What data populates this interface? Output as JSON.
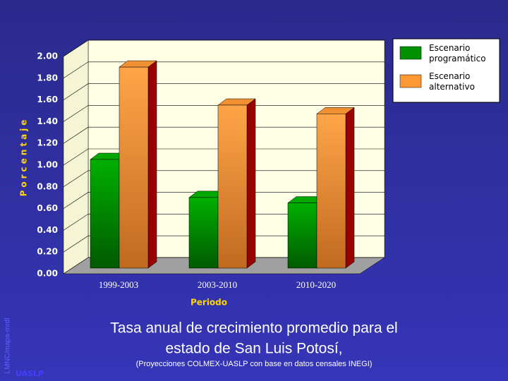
{
  "chart_data": {
    "type": "bar3d",
    "title_lines": [
      "Tasa anual de crecimiento promedio para el",
      "estado de  San Luis Potosí,"
    ],
    "subtitle": "(Proyecciones COLMEX-UASLP con base en datos censales INEGI)",
    "x_label": "Periodo",
    "y_label": "Porcentaje",
    "categories": [
      "1999-2003",
      "2003-2010",
      "2010-2020"
    ],
    "series": [
      {
        "name": "Escenario programático",
        "color": "#009000",
        "values": [
          1.0,
          0.65,
          0.6
        ]
      },
      {
        "name": "Escenario alternativo",
        "color": "#ff9933",
        "values": [
          1.85,
          1.5,
          1.42
        ]
      }
    ],
    "ylim": [
      0,
      2
    ],
    "yticks": [
      {
        "value": 0,
        "label": "0.00"
      },
      {
        "value": 0.2,
        "label": "0.20"
      },
      {
        "value": 0.4,
        "label": "0.40"
      },
      {
        "value": 0.6,
        "label": "0.60"
      },
      {
        "value": 0.8,
        "label": "0.80"
      },
      {
        "value": 1,
        "label": "1.00"
      },
      {
        "value": 1.2,
        "label": "1.20"
      },
      {
        "value": 1.4,
        "label": "1.40"
      },
      {
        "value": 1.6,
        "label": "1.60"
      },
      {
        "value": 1.8,
        "label": "1.80"
      },
      {
        "value": 2,
        "label": "2.00"
      }
    ],
    "grid": true,
    "legend": "right"
  },
  "footer": {
    "credit": "LMNC/mapa-mrdl",
    "institution": "UASLP"
  }
}
